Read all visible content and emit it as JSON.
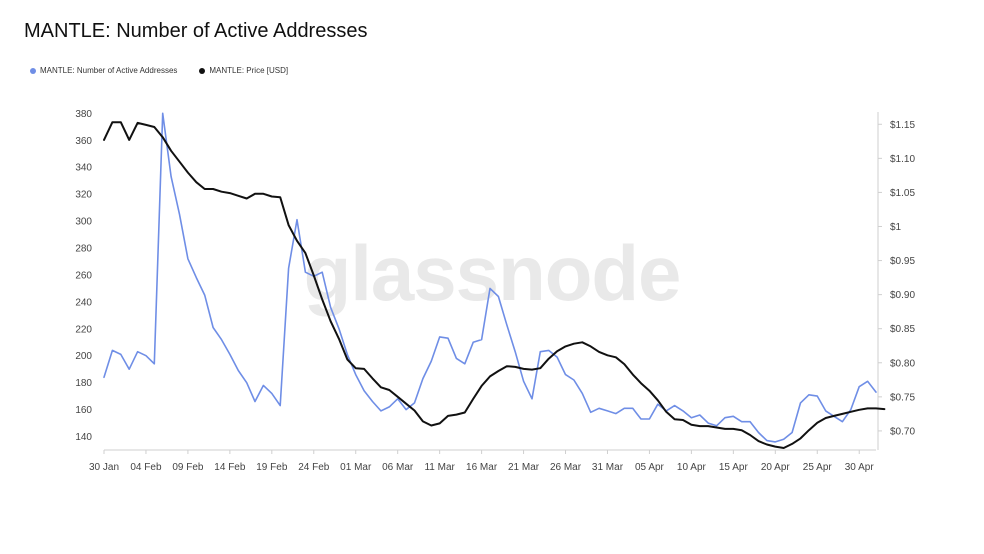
{
  "chart_data": {
    "type": "line",
    "title": "MANTLE: Number of Active Addresses",
    "watermark": "glassnode",
    "legend_position": "top-left",
    "grid": false,
    "x_ticks": [
      "30 Jan",
      "04 Feb",
      "09 Feb",
      "14 Feb",
      "19 Feb",
      "24 Feb",
      "01 Mar",
      "06 Mar",
      "11 Mar",
      "16 Mar",
      "21 Mar",
      "26 Mar",
      "31 Mar",
      "05 Apr",
      "10 Apr",
      "15 Apr",
      "20 Apr",
      "25 Apr",
      "30 Apr"
    ],
    "y_left": {
      "ticks": [
        "140",
        "160",
        "180",
        "200",
        "220",
        "240",
        "260",
        "280",
        "300",
        "320",
        "340",
        "360",
        "380"
      ],
      "range": [
        130,
        381
      ]
    },
    "y_right": {
      "ticks": [
        "$0.70",
        "$0.75",
        "$0.80",
        "$0.85",
        "$0.90",
        "$0.95",
        "$1",
        "$1.05",
        "$1.10",
        "$1.15"
      ],
      "tick_values": [
        0.7,
        0.75,
        0.8,
        0.85,
        0.9,
        0.95,
        1.0,
        1.05,
        1.1,
        1.15
      ],
      "range": [
        0.672,
        1.168
      ]
    },
    "series": [
      {
        "name": "MANTLE: Number of Active Addresses",
        "color": "#6f8ee6",
        "axis": "left",
        "values": [
          184,
          204,
          201,
          190,
          203,
          200,
          194,
          380,
          333,
          305,
          272,
          258,
          245,
          221,
          212,
          201,
          189,
          180,
          166,
          178,
          172,
          163,
          265,
          301,
          262,
          259,
          262,
          236,
          220,
          201,
          186,
          174,
          166,
          159,
          162,
          168,
          160,
          165,
          183,
          196,
          214,
          213,
          198,
          194,
          210,
          212,
          250,
          244,
          223,
          203,
          181,
          168,
          203,
          204,
          199,
          186,
          182,
          172,
          158,
          161,
          159,
          157,
          161,
          161,
          153,
          153,
          164,
          159,
          163,
          159,
          154,
          156,
          150,
          148,
          154,
          155,
          151,
          151,
          143,
          137,
          136,
          138,
          143,
          165,
          171,
          170,
          159,
          155,
          151,
          160,
          177,
          181,
          173
        ]
      },
      {
        "name": "MANTLE: Price [USD]",
        "color": "#111111",
        "axis": "right",
        "values": [
          1.127,
          1.153,
          1.153,
          1.127,
          1.152,
          1.149,
          1.146,
          1.131,
          1.111,
          1.095,
          1.079,
          1.065,
          1.055,
          1.055,
          1.051,
          1.049,
          1.045,
          1.041,
          1.048,
          1.048,
          1.044,
          1.043,
          1.002,
          0.979,
          0.961,
          0.928,
          0.893,
          0.861,
          0.835,
          0.805,
          0.792,
          0.791,
          0.777,
          0.764,
          0.76,
          0.75,
          0.74,
          0.73,
          0.714,
          0.708,
          0.711,
          0.722,
          0.724,
          0.727,
          0.747,
          0.766,
          0.78,
          0.788,
          0.795,
          0.794,
          0.791,
          0.79,
          0.792,
          0.806,
          0.817,
          0.824,
          0.828,
          0.83,
          0.824,
          0.816,
          0.811,
          0.808,
          0.798,
          0.783,
          0.77,
          0.759,
          0.745,
          0.728,
          0.717,
          0.716,
          0.709,
          0.707,
          0.707,
          0.705,
          0.703,
          0.703,
          0.701,
          0.694,
          0.685,
          0.68,
          0.677,
          0.675,
          0.681,
          0.689,
          0.701,
          0.712,
          0.719,
          0.722,
          0.725,
          0.728,
          0.731,
          0.733,
          0.733,
          0.732
        ]
      }
    ]
  }
}
